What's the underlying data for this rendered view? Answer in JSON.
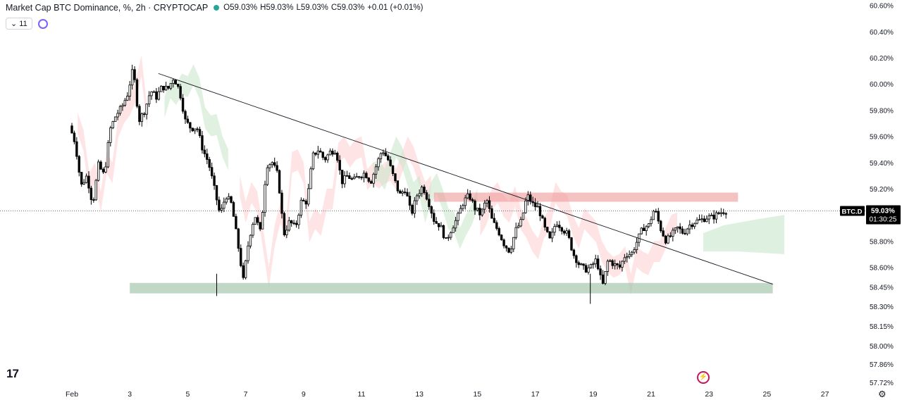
{
  "header": {
    "title": "Market Cap BTC Dominance, %",
    "interval": "2h",
    "exchange": "CRYPTOCAP",
    "ohlc": [
      {
        "k": "O",
        "v": "59.03%"
      },
      {
        "k": "H",
        "v": "59.03%"
      },
      {
        "k": "L",
        "v": "59.03%"
      },
      {
        "k": "C",
        "v": "59.03%"
      },
      {
        "k": "",
        "v": "+0.01 (+0.01%)"
      }
    ],
    "indicator_count": "11"
  },
  "colors": {
    "up": "#ffffff",
    "down": "#000000",
    "cloud_green": "#c8e6c9",
    "cloud_red": "#ffcdd2",
    "support_zone": "#a5c8ad",
    "resistance_zone": "#ef9a9a",
    "trendline": "#131722",
    "price_label_bg": "#000000"
  },
  "chart_data": {
    "type": "candlestick",
    "symbol_label": "BTC.D",
    "last_price_label": "59.03%",
    "countdown": "01:30:25",
    "y_ticks": [
      "60.60%",
      "60.40%",
      "60.20%",
      "60.00%",
      "59.80%",
      "59.60%",
      "59.40%",
      "59.20%",
      "58.80%",
      "58.60%",
      "58.45%",
      "58.30%",
      "58.15%",
      "58.00%",
      "57.86%",
      "57.72%"
    ],
    "x_ticks": [
      "Feb",
      "3",
      "5",
      "7",
      "9",
      "11",
      "13",
      "15",
      "17",
      "19",
      "21",
      "23",
      "25",
      "27"
    ],
    "ylim": [
      57.72,
      60.62
    ],
    "last_price": 59.03,
    "support_zone": {
      "from_day": 3,
      "to_day": 25.2,
      "low": 58.4,
      "high": 58.48
    },
    "resistance_zone": {
      "from_day": 13.5,
      "to_day": 24,
      "low": 59.1,
      "high": 59.15
    },
    "trendline": {
      "x1": 3.5,
      "y1": 60.08,
      "x2": 25.2,
      "y2": 58.47
    },
    "path": [
      [
        0.0,
        59.68
      ],
      [
        0.2,
        59.55
      ],
      [
        0.4,
        59.22
      ],
      [
        0.6,
        59.3
      ],
      [
        0.8,
        59.08
      ],
      [
        1.0,
        59.38
      ],
      [
        1.2,
        59.3
      ],
      [
        1.4,
        59.65
      ],
      [
        1.6,
        59.76
      ],
      [
        1.8,
        59.82
      ],
      [
        2.0,
        59.92
      ],
      [
        2.2,
        60.12
      ],
      [
        2.4,
        59.72
      ],
      [
        2.6,
        59.8
      ],
      [
        2.8,
        59.95
      ],
      [
        3.0,
        59.9
      ],
      [
        3.2,
        59.98
      ],
      [
        3.4,
        59.96
      ],
      [
        3.6,
        60.05
      ],
      [
        3.8,
        59.95
      ],
      [
        4.0,
        59.72
      ],
      [
        4.2,
        59.66
      ],
      [
        4.4,
        59.67
      ],
      [
        4.6,
        59.5
      ],
      [
        4.8,
        59.4
      ],
      [
        5.0,
        59.2
      ],
      [
        5.2,
        59.0
      ],
      [
        5.4,
        59.15
      ],
      [
        5.6,
        59.08
      ],
      [
        5.8,
        58.8
      ],
      [
        6.0,
        58.5
      ],
      [
        6.2,
        58.82
      ],
      [
        6.4,
        59.0
      ],
      [
        6.6,
        58.86
      ],
      [
        6.8,
        59.38
      ],
      [
        7.0,
        59.4
      ],
      [
        7.2,
        59.3
      ],
      [
        7.4,
        58.85
      ],
      [
        7.6,
        58.95
      ],
      [
        7.8,
        58.9
      ],
      [
        8.0,
        59.1
      ],
      [
        8.2,
        59.1
      ],
      [
        8.4,
        59.45
      ],
      [
        8.6,
        59.5
      ],
      [
        8.8,
        59.42
      ],
      [
        9.0,
        59.48
      ],
      [
        9.2,
        59.5
      ],
      [
        9.4,
        59.25
      ],
      [
        9.6,
        59.3
      ],
      [
        9.8,
        59.26
      ],
      [
        10.0,
        59.3
      ],
      [
        10.2,
        59.32
      ],
      [
        10.4,
        59.25
      ],
      [
        10.6,
        59.38
      ],
      [
        10.8,
        59.5
      ],
      [
        11.0,
        59.42
      ],
      [
        11.2,
        59.28
      ],
      [
        11.4,
        59.15
      ],
      [
        11.6,
        59.2
      ],
      [
        11.8,
        59.0
      ],
      [
        12.0,
        59.15
      ],
      [
        12.2,
        59.22
      ],
      [
        12.4,
        59.1
      ],
      [
        12.6,
        58.95
      ],
      [
        12.8,
        58.92
      ],
      [
        13.0,
        58.8
      ],
      [
        13.2,
        58.9
      ],
      [
        13.4,
        58.98
      ],
      [
        13.6,
        59.1
      ],
      [
        13.8,
        59.15
      ],
      [
        14.0,
        59.05
      ],
      [
        14.2,
        59.0
      ],
      [
        14.4,
        59.12
      ],
      [
        14.6,
        58.95
      ],
      [
        14.8,
        58.88
      ],
      [
        15.0,
        58.78
      ],
      [
        15.2,
        58.72
      ],
      [
        15.4,
        58.88
      ],
      [
        15.6,
        58.95
      ],
      [
        15.8,
        59.15
      ],
      [
        16.0,
        59.08
      ],
      [
        16.2,
        59.05
      ],
      [
        16.4,
        58.9
      ],
      [
        16.6,
        58.8
      ],
      [
        16.8,
        58.95
      ],
      [
        17.0,
        58.9
      ],
      [
        17.2,
        58.85
      ],
      [
        17.4,
        58.7
      ],
      [
        17.6,
        58.62
      ],
      [
        17.8,
        58.58
      ],
      [
        18.0,
        58.6
      ],
      [
        18.2,
        58.66
      ],
      [
        18.4,
        58.45
      ],
      [
        18.6,
        58.66
      ],
      [
        18.8,
        58.62
      ],
      [
        19.0,
        58.6
      ],
      [
        19.2,
        58.7
      ],
      [
        19.4,
        58.7
      ],
      [
        19.6,
        58.8
      ],
      [
        19.8,
        58.9
      ],
      [
        20.0,
        58.92
      ],
      [
        20.2,
        59.05
      ],
      [
        20.4,
        58.9
      ],
      [
        20.6,
        58.8
      ],
      [
        20.8,
        58.85
      ],
      [
        21.0,
        58.9
      ],
      [
        21.2,
        58.86
      ],
      [
        21.4,
        58.92
      ],
      [
        21.6,
        58.95
      ],
      [
        21.8,
        58.96
      ],
      [
        22.0,
        58.98
      ],
      [
        22.2,
        58.98
      ],
      [
        22.4,
        59.01
      ],
      [
        22.6,
        59.03
      ]
    ]
  }
}
